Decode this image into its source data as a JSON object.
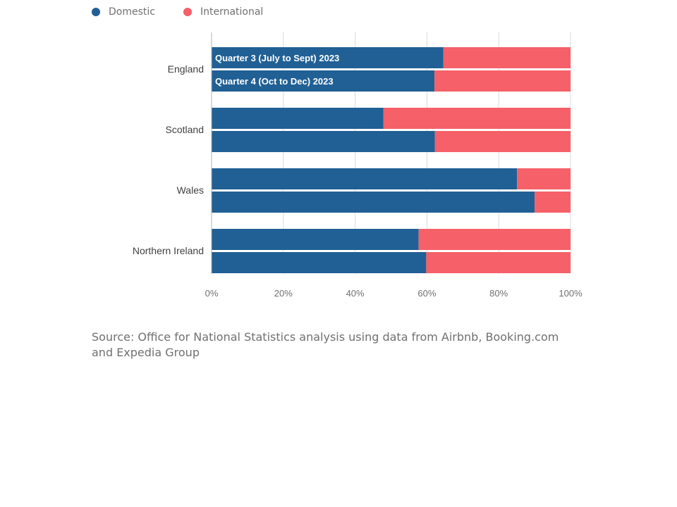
{
  "legend": [
    {
      "label": "Domestic",
      "color": "#206095"
    },
    {
      "label": "International",
      "color": "#f66068"
    }
  ],
  "chart_data": {
    "type": "bar",
    "orientation": "horizontal",
    "stacked": true,
    "categories": [
      "England",
      "Scotland",
      "Wales",
      "Northern Ireland"
    ],
    "bar_labels": [
      "Quarter 3 (July to Sept) 2023",
      "Quarter 4 (Oct to Dec) 2023"
    ],
    "series": [
      {
        "name": "Domestic",
        "color": "#206095",
        "values": [
          [
            64.6,
            62.1
          ],
          [
            47.9,
            62.2
          ],
          [
            85.1,
            90.0
          ],
          [
            57.7,
            59.8
          ]
        ]
      },
      {
        "name": "International",
        "color": "#f66068",
        "values": [
          [
            35.4,
            37.9
          ],
          [
            52.1,
            37.8
          ],
          [
            14.9,
            10.0
          ],
          [
            42.3,
            40.2
          ]
        ]
      }
    ],
    "xlim": [
      0,
      100
    ],
    "xticks": [
      "0%",
      "20%",
      "40%",
      "60%",
      "80%",
      "100%"
    ],
    "grid": true,
    "legend_position": "top-left"
  },
  "source": "Source: Office for National Statistics analysis using data from Airbnb, Booking.com and Expedia Group"
}
